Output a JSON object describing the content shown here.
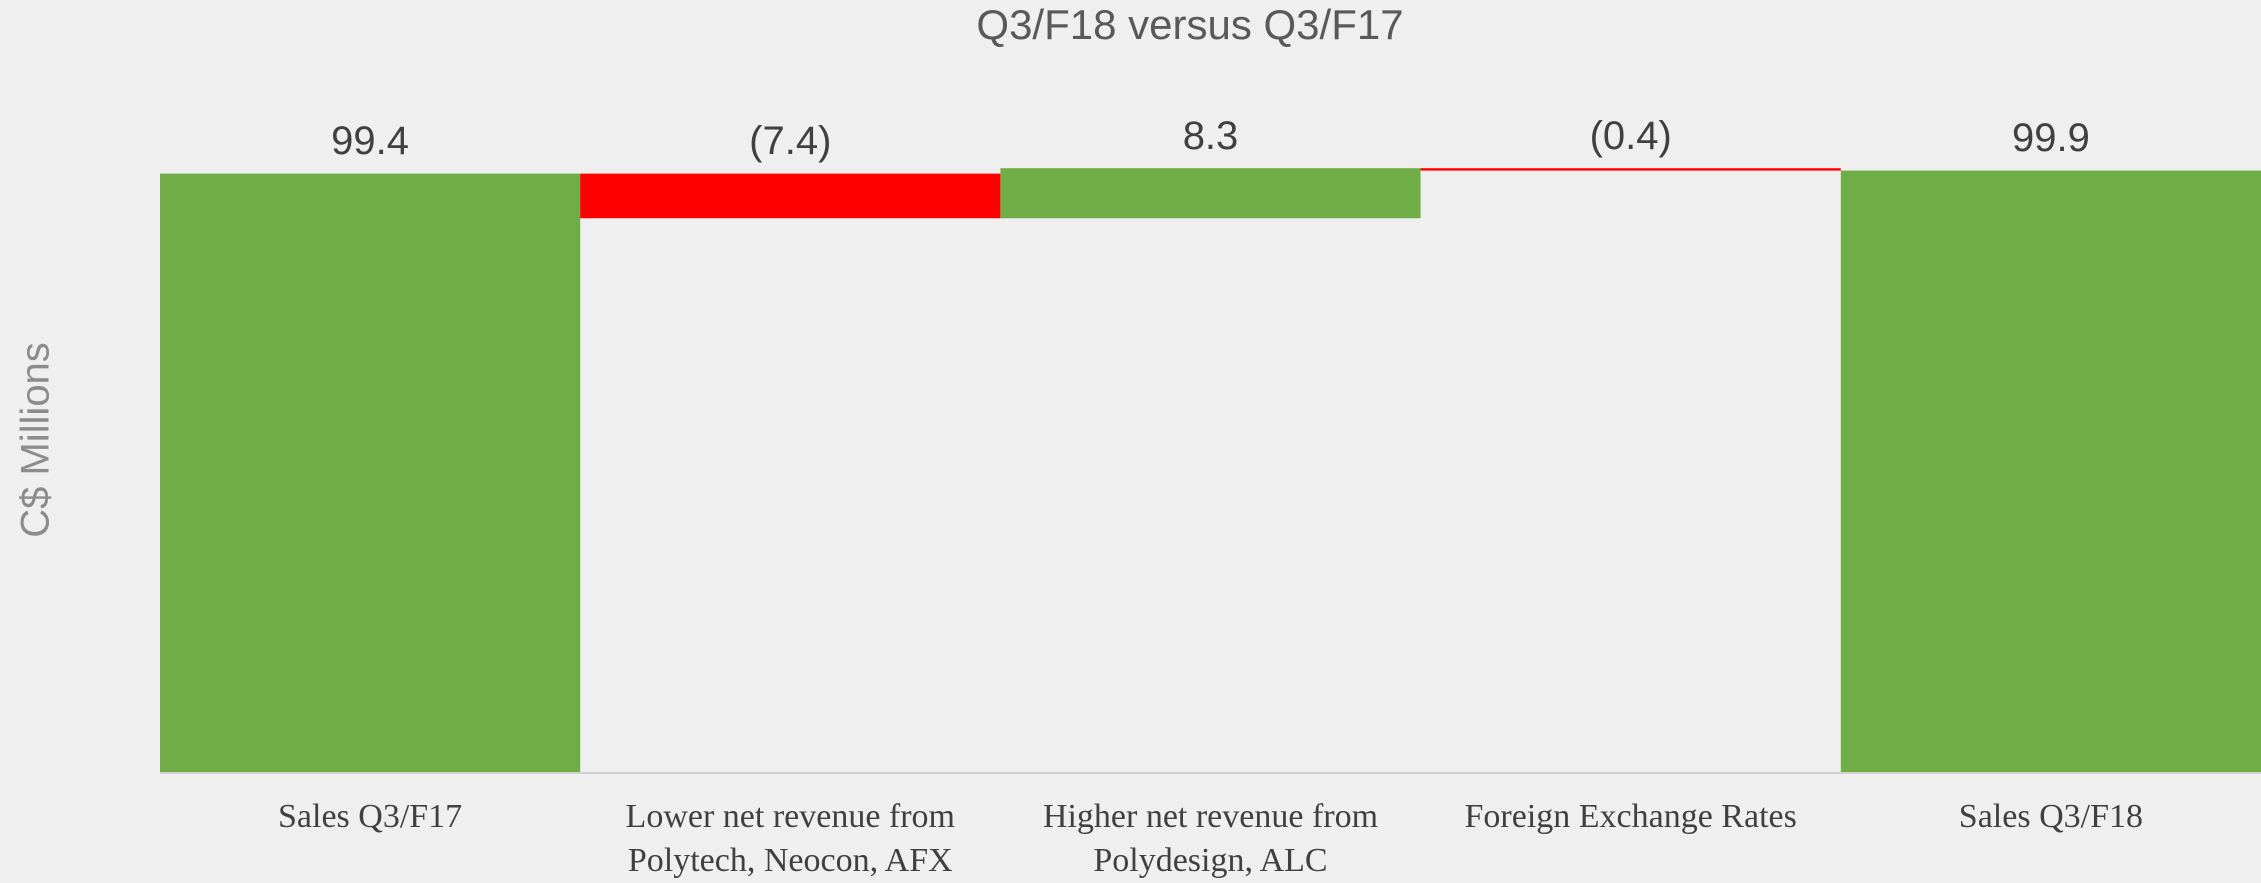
{
  "chart_data": {
    "type": "waterfall",
    "title": "Q3/F18 versus Q3/F17",
    "y_label": "C$ Millions",
    "categories": [
      "Sales Q3/F17",
      "Lower net revenue from Polytech, Neocon, AFX",
      "Higher net revenue from Polydesign, ALC",
      "Foreign Exchange Rates",
      "Sales Q3/F18"
    ],
    "measures": [
      "absolute",
      "relative",
      "relative",
      "relative",
      "absolute"
    ],
    "values": [
      99.4,
      -7.4,
      8.3,
      -0.4,
      99.9
    ],
    "value_labels": [
      "99.4",
      "(7.4)",
      "8.3",
      "(0.4)",
      "99.9"
    ],
    "colors": {
      "total": "#70ad47",
      "increase": "#70ad47",
      "decrease": "#ff0000"
    },
    "ylim": [
      0,
      100
    ]
  }
}
